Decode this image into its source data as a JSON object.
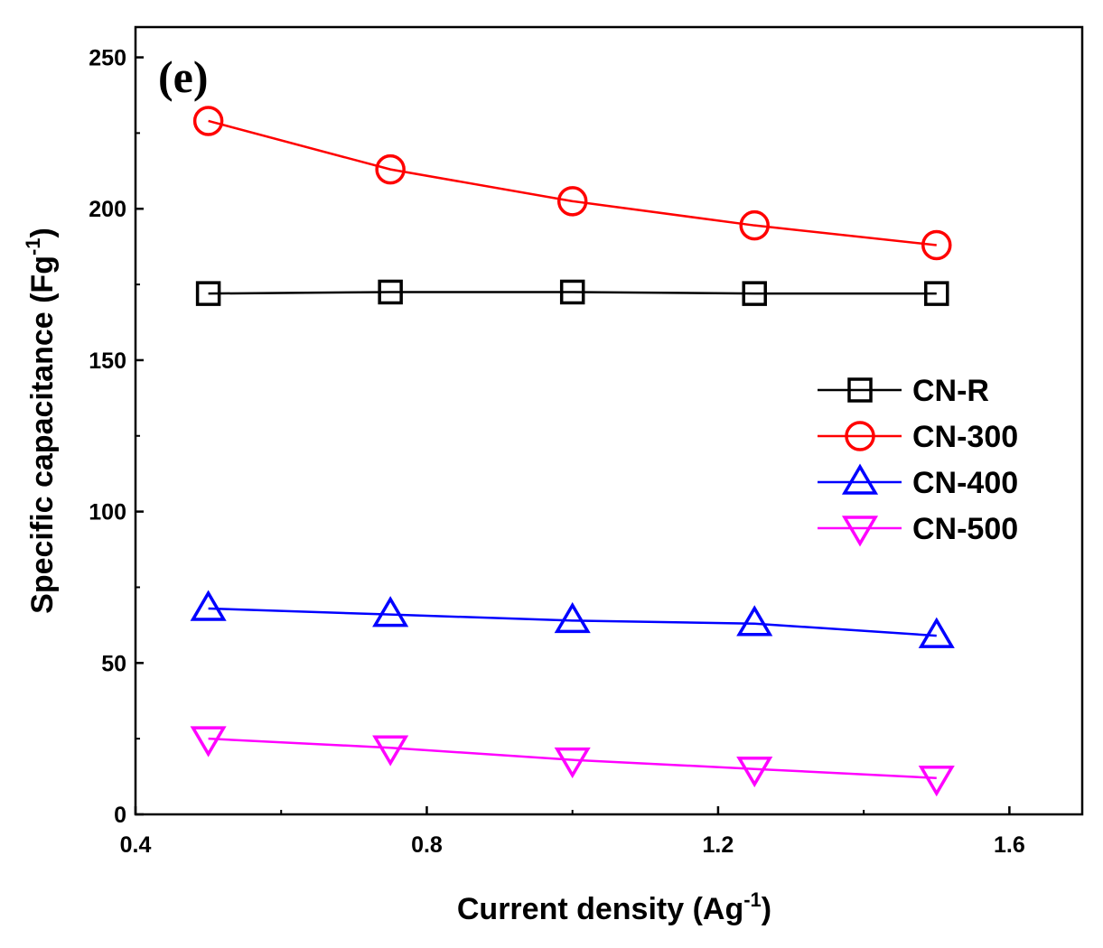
{
  "chart_data": {
    "type": "line",
    "panel_label": "(e)",
    "xlabel": {
      "text": "Current density (Ag",
      "sup": "-1",
      "close": ")"
    },
    "ylabel": {
      "text": "Specific capacitance (Fg",
      "sup": "-1",
      "close": ")"
    },
    "xlim": [
      0.4,
      1.7
    ],
    "ylim": [
      0,
      260
    ],
    "xticks": [
      0.4,
      0.8,
      1.2,
      1.6
    ],
    "xtick_labels": [
      "0.4",
      "0.8",
      "1.2",
      "1.6"
    ],
    "yticks": [
      0,
      50,
      100,
      150,
      200,
      250
    ],
    "ytick_labels": [
      "0",
      "50",
      "100",
      "150",
      "200",
      "250"
    ],
    "x": [
      0.5,
      0.75,
      1.0,
      1.25,
      1.5
    ],
    "legend_position": "right",
    "series": [
      {
        "name": "CN-R",
        "marker": "square",
        "color": "#000000",
        "values": [
          172,
          172.5,
          172.5,
          172,
          172
        ]
      },
      {
        "name": "CN-300",
        "marker": "circle",
        "color": "#ff0000",
        "values": [
          229,
          213,
          202.5,
          194.5,
          188
        ]
      },
      {
        "name": "CN-400",
        "marker": "triangle-up",
        "color": "#0000ff",
        "values": [
          68,
          66,
          64,
          63,
          59
        ]
      },
      {
        "name": "CN-500",
        "marker": "triangle-down",
        "color": "#ff00ff",
        "values": [
          25,
          22,
          18,
          15,
          12
        ]
      }
    ]
  }
}
